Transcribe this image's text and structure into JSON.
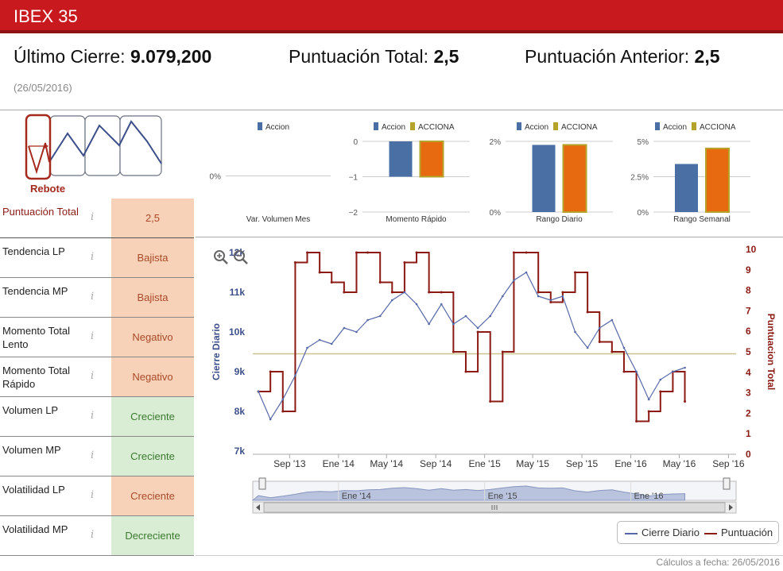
{
  "header": {
    "title": "IBEX 35"
  },
  "summary": {
    "last_close_label": "Último Cierre:",
    "last_close_value": "9.079,200",
    "total_score_label": "Puntuación Total:",
    "total_score_value": "2,5",
    "previous_score_label": "Puntuación Anterior:",
    "previous_score_value": "2,5",
    "date": "(26/05/2016)"
  },
  "pattern": {
    "label": "Rebote"
  },
  "indicators": [
    {
      "label": "Puntuación Total",
      "value": "2,5",
      "tone": "orange"
    },
    {
      "label": "Tendencia LP",
      "value": "Bajista",
      "tone": "orange"
    },
    {
      "label": "Tendencia MP",
      "value": "Bajista",
      "tone": "orange"
    },
    {
      "label": "Momento Total Lento",
      "value": "Negativo",
      "tone": "orange"
    },
    {
      "label": "Momento Total Rápido",
      "value": "Negativo",
      "tone": "orange"
    },
    {
      "label": "Volumen LP",
      "value": "Creciente",
      "tone": "green"
    },
    {
      "label": "Volumen MP",
      "value": "Creciente",
      "tone": "green"
    },
    {
      "label": "Volatilidad LP",
      "value": "Creciente",
      "tone": "orange"
    },
    {
      "label": "Volatilidad MP",
      "value": "Decreciente",
      "tone": "green"
    }
  ],
  "info_icon": "i",
  "colors": {
    "accent": "#c8191e",
    "accion": "#4a6fa5",
    "acciona": "#e86a10",
    "acciona_border": "#b5a22a",
    "score_line": "#8b1a14",
    "close_line": "#5668a8"
  },
  "chart_data": [
    {
      "type": "bar",
      "title": "Var. Volumen Mes",
      "legend": [
        "Accion"
      ],
      "series": [
        {
          "name": "Accion",
          "values": [
            0
          ]
        }
      ],
      "yticks": [
        "0%"
      ],
      "ylim": [
        -1,
        1
      ]
    },
    {
      "type": "bar",
      "title": "Momento Rápido",
      "legend": [
        "Accion",
        "ACCIONA"
      ],
      "series": [
        {
          "name": "Accion",
          "values": [
            -1
          ]
        },
        {
          "name": "ACCIONA",
          "values": [
            -1
          ]
        }
      ],
      "yticks": [
        "0",
        "−1",
        "−2"
      ],
      "ylim": [
        -2,
        0
      ]
    },
    {
      "type": "bar",
      "title": "Rango Diario",
      "legend": [
        "Accion",
        "ACCIONA"
      ],
      "series": [
        {
          "name": "Accion",
          "values": [
            1.9
          ]
        },
        {
          "name": "ACCIONA",
          "values": [
            1.9
          ]
        }
      ],
      "yticks": [
        "2%",
        "0%"
      ],
      "ylim": [
        0,
        2
      ]
    },
    {
      "type": "bar",
      "title": "Rango Semanal",
      "legend": [
        "Accion",
        "ACCIONA"
      ],
      "series": [
        {
          "name": "Accion",
          "values": [
            3.4
          ]
        },
        {
          "name": "ACCIONA",
          "values": [
            4.5
          ]
        }
      ],
      "yticks": [
        "5%",
        "2.5%",
        "0%"
      ],
      "ylim": [
        0,
        5
      ]
    },
    {
      "type": "line",
      "xticks": [
        "Sep '13",
        "Ene '14",
        "May '14",
        "Sep '14",
        "Ene '15",
        "May '15",
        "Sep '15",
        "Ene '16",
        "May '16",
        "Sep '16"
      ],
      "navigator_ticks": [
        "Ene '14",
        "Ene '15",
        "Ene '16"
      ],
      "y_left": {
        "label": "Cierre Diario",
        "ticks": [
          "12k",
          "11k",
          "10k",
          "9k",
          "8k",
          "7k"
        ],
        "range": [
          7000,
          12000
        ]
      },
      "y_right": {
        "label": "Puntuacion Total",
        "ticks": [
          "10",
          "9",
          "8",
          "7",
          "6",
          "5",
          "4",
          "3",
          "2",
          "1",
          "0"
        ],
        "range": [
          0,
          10
        ]
      },
      "reference_line": 4.9,
      "legend": [
        "Cierre Diario",
        "Puntuación"
      ],
      "series": [
        {
          "name": "Cierre Diario",
          "x": [
            "2013-06",
            "2013-07",
            "2013-08",
            "2013-09",
            "2013-10",
            "2013-11",
            "2013-12",
            "2014-01",
            "2014-02",
            "2014-03",
            "2014-04",
            "2014-05",
            "2014-06",
            "2014-07",
            "2014-08",
            "2014-09",
            "2014-10",
            "2014-11",
            "2014-12",
            "2015-01",
            "2015-02",
            "2015-03",
            "2015-04",
            "2015-05",
            "2015-06",
            "2015-07",
            "2015-08",
            "2015-09",
            "2015-10",
            "2015-11",
            "2015-12",
            "2016-01",
            "2016-02",
            "2016-03",
            "2016-04",
            "2016-05"
          ],
          "values": [
            8500,
            7800,
            8300,
            8900,
            9600,
            9800,
            9700,
            10100,
            10000,
            10300,
            10400,
            10800,
            11000,
            10700,
            10200,
            10700,
            10200,
            10400,
            10100,
            10400,
            10900,
            11300,
            11500,
            10900,
            10800,
            10900,
            10000,
            9600,
            10100,
            10300,
            9600,
            9000,
            8300,
            8800,
            9000,
            9100
          ]
        },
        {
          "name": "Puntuación",
          "x": [
            "2013-06",
            "2013-07",
            "2013-08",
            "2013-09",
            "2013-10",
            "2013-11",
            "2013-12",
            "2014-01",
            "2014-02",
            "2014-03",
            "2014-04",
            "2014-05",
            "2014-06",
            "2014-07",
            "2014-08",
            "2014-09",
            "2014-10",
            "2014-11",
            "2014-12",
            "2015-01",
            "2015-02",
            "2015-03",
            "2015-04",
            "2015-05",
            "2015-06",
            "2015-07",
            "2015-08",
            "2015-09",
            "2015-10",
            "2015-11",
            "2015-12",
            "2016-01",
            "2016-02",
            "2016-03",
            "2016-04",
            "2016-05"
          ],
          "values": [
            3,
            4,
            2,
            9.5,
            10,
            9,
            8.5,
            8,
            10,
            10,
            8.5,
            8,
            9.5,
            10,
            8,
            8,
            5,
            4,
            6,
            2.5,
            5,
            10,
            10,
            8,
            7.5,
            8,
            9,
            7,
            5.5,
            5,
            4,
            1.5,
            2,
            3,
            4,
            2.5
          ]
        }
      ]
    }
  ],
  "footer": {
    "text": "Cálculos a fecha: 26/05/2016"
  }
}
